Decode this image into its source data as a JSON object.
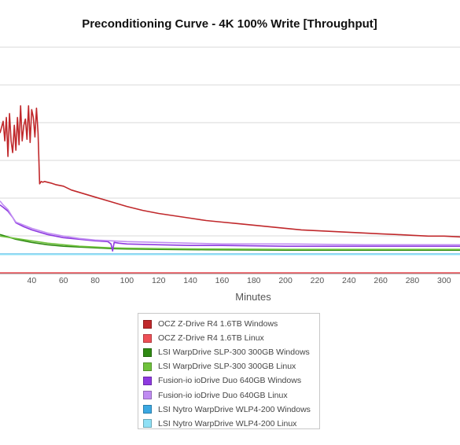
{
  "chart_data": {
    "type": "line",
    "title": "Preconditioning Curve - 4K 100% Write [Throughput]",
    "xlabel": "Minutes",
    "ylabel": "",
    "xlim": [
      20,
      310
    ],
    "ylim": [
      0,
      290
    ],
    "xticks": [
      40,
      60,
      80,
      100,
      120,
      140,
      160,
      180,
      200,
      220,
      240,
      260,
      280,
      300
    ],
    "grid": "horizontal",
    "legend_position": "bottom-center",
    "series": [
      {
        "name": "OCZ Z-Drive R4 1.6TB Windows",
        "color": "#c0282b",
        "x": [
          20,
          22,
          23,
          24,
          25,
          26,
          27,
          28,
          29,
          30,
          31,
          32,
          33,
          34,
          35,
          36,
          37,
          38,
          39,
          40,
          41,
          42,
          43,
          44,
          45,
          46,
          47,
          48,
          50,
          52,
          55,
          60,
          65,
          70,
          80,
          90,
          100,
          110,
          120,
          130,
          140,
          150,
          160,
          170,
          180,
          190,
          200,
          210,
          220,
          230,
          240,
          250,
          260,
          270,
          280,
          290,
          300,
          310
        ],
        "y": [
          180,
          195,
          170,
          200,
          150,
          205,
          170,
          155,
          190,
          158,
          200,
          165,
          215,
          170,
          190,
          198,
          172,
          215,
          168,
          210,
          200,
          175,
          212,
          180,
          115,
          118,
          117,
          118,
          117,
          116,
          114,
          112,
          107,
          104,
          98,
          92,
          86,
          81,
          77,
          74,
          71,
          68,
          66,
          64,
          62,
          60,
          58,
          56,
          55,
          54,
          53,
          52,
          51,
          50,
          49,
          48,
          48,
          47
        ]
      },
      {
        "name": "OCZ Z-Drive R4 1.6TB Linux",
        "color": "#ee5057",
        "x": [
          20,
          310
        ],
        "y": [
          1,
          1
        ]
      },
      {
        "name": "LSI WarpDrive SLP-300 300GB Windows",
        "color": "#2f8a13",
        "x": [
          20,
          30,
          40,
          50,
          60,
          70,
          80,
          90,
          100,
          120,
          150,
          200,
          250,
          310
        ],
        "y": [
          50,
          44,
          40,
          37,
          35,
          34,
          33,
          32,
          31.5,
          31,
          30.5,
          30,
          30,
          30
        ]
      },
      {
        "name": "LSI WarpDrive SLP-300 300GB Linux",
        "color": "#6fc23c",
        "x": [
          20,
          30,
          40,
          50,
          60,
          70,
          80,
          90,
          100,
          120,
          150,
          200,
          250,
          310
        ],
        "y": [
          48,
          45,
          42,
          39,
          37,
          35,
          34,
          33,
          32.5,
          32,
          31.5,
          31,
          31,
          31
        ]
      },
      {
        "name": "Fusion-io ioDrive Duo 640GB Windows",
        "color": "#8e3ae0",
        "x": [
          20,
          22,
          25,
          28,
          30,
          35,
          40,
          45,
          50,
          60,
          70,
          80,
          88,
          90,
          91,
          92,
          95,
          100,
          120,
          140,
          160,
          200,
          250,
          310
        ],
        "y": [
          88,
          85,
          80,
          72,
          65,
          60,
          56,
          53,
          50,
          46,
          44,
          42,
          41,
          38,
          29,
          40,
          39,
          38,
          37,
          36,
          36,
          35,
          35,
          35
        ]
      },
      {
        "name": "Fusion-io ioDrive Duo 640GB Linux",
        "color": "#c08cf2",
        "x": [
          20,
          22,
          25,
          28,
          30,
          35,
          40,
          45,
          50,
          60,
          70,
          80,
          90,
          100,
          120,
          140,
          160,
          200,
          250,
          310
        ],
        "y": [
          93,
          88,
          82,
          72,
          66,
          62,
          58,
          55,
          52,
          48,
          45,
          43,
          42,
          41,
          40,
          39,
          38,
          38,
          37,
          37
        ]
      },
      {
        "name": "LSI Nytro WarpDrive WLP4-200 Windows",
        "color": "#3ba8e2",
        "x": [
          20,
          310
        ],
        "y": [
          25,
          25
        ]
      },
      {
        "name": "LSI Nytro WarpDrive WLP4-200 Linux",
        "color": "#8fe0f5",
        "x": [
          20,
          310
        ],
        "y": [
          24.5,
          24.5
        ]
      }
    ]
  }
}
